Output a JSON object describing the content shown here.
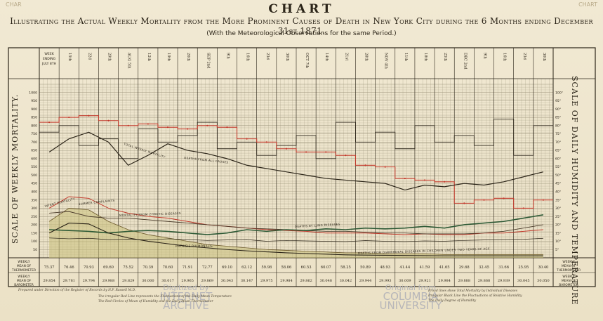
{
  "header": {
    "title": "CHART",
    "subtitle": "Illustrating the Actual Weekly Mortality from the More Prominent Causes of Death in New York City during the 6 Months ending December 31st 1871.",
    "note": "(With the Meteorological Observations for the same Period.)",
    "corner_left": "CHAR",
    "corner_right": "CHART"
  },
  "left_axis_title": "SCALE OF WEEKLY MORTALITY.",
  "right_axis_title": "SCALE OF DAILY HUMIDITY AND TEMPERATURE",
  "header_cell": [
    "WEEK",
    "ENDING",
    "JULY 8TH"
  ],
  "week_labels": [
    "15th",
    "22d",
    "29th",
    "AUG 5th",
    "12th",
    "19th",
    "26th",
    "SEP 2nd",
    "9th",
    "16th",
    "23d",
    "30th",
    "OCT 7th",
    "14th",
    "21st",
    "28th",
    "NOV 4th",
    "11th",
    "18th",
    "25th",
    "DEC 2nd",
    "9th",
    "16th",
    "23d",
    "30th"
  ],
  "row_labels": {
    "thermometer": [
      "WEEKLY",
      "MEAN OF",
      "THERMOMETER"
    ],
    "barometer": [
      "WEEKLY",
      "MEAN OF",
      "BAROMETER"
    ]
  },
  "thermometer_means": [
    "75.37",
    "76.46",
    "70.93",
    "69.60",
    "75.52",
    "70.39",
    "70.60",
    "71.91",
    "72.77",
    "69.10",
    "62.12",
    "59.98",
    "58.06",
    "60.53",
    "60.07",
    "58.25",
    "50.89",
    "48.93",
    "41.44",
    "41.59",
    "41.65",
    "29.68",
    "32.45",
    "31.66",
    "25.95",
    "30.40"
  ],
  "barometer_means": [
    "29.854",
    "29.781",
    "29.794",
    "29.988",
    "29.829",
    "30.000",
    "30.017",
    "29.965",
    "29.869",
    "30.043",
    "30.147",
    "29.975",
    "29.984",
    "29.862",
    "30.048",
    "30.042",
    "29.944",
    "29.993",
    "30.009",
    "29.921",
    "29.984",
    "29.888",
    "29.868",
    "29.939",
    "30.045",
    "30.050"
  ],
  "annotations": {
    "total": "TOTAL WEEKLY MORTALITY",
    "all_causes": "DEATHS FROM ALL CAUSES",
    "infant": "INFANT MORTALITY",
    "summer": "SUMMER COMPLAINTS",
    "zymotic": "MORTALITY FROM ZYMOTIC DISEASES",
    "lung": "DEATHS BY LUNG DISEASES",
    "phthisis": "PHTHISIS PULMONALIS",
    "diarrhoeal": "DEATHS FROM DIARRHOEAL DISEASES IN CHILDREN UNDER TWO YEARS OF AGE"
  },
  "watermarks": {
    "left": [
      "Digitized by",
      "INTERNET ARCHIVE"
    ],
    "right": [
      "Original from",
      "COLUMBIA UNIVERSITY"
    ]
  },
  "footnotes": {
    "left": [
      "Prepared under Direction of the Register of Records by N.F. Russell M.D.",
      "The irregular Red Line represents the Fluctuations of the Daily Mean Temperature",
      "The Red Circles of Mean of Humidity and the Daily Mean Thermometer"
    ],
    "right": [
      "Broad lines show Total Mortality by Individual Diseases",
      "Irregular Black Line the Fluctuations of Relative Humidity",
      "The Daily Degree of Humidity"
    ]
  },
  "colors": {
    "paper": "#efe6cf",
    "grid": "#9a9279",
    "ink": "#2b2418",
    "red_line": "#c0392b",
    "green_line": "#2e5a36",
    "olive_fill": "#c8c07a"
  },
  "chart_data": {
    "type": "line",
    "x_categories": [
      "Jul 8",
      "Jul 15",
      "Jul 22",
      "Jul 29",
      "Aug 5",
      "Aug 12",
      "Aug 19",
      "Aug 26",
      "Sep 2",
      "Sep 9",
      "Sep 16",
      "Sep 23",
      "Sep 30",
      "Oct 7",
      "Oct 14",
      "Oct 21",
      "Oct 28",
      "Nov 4",
      "Nov 11",
      "Nov 18",
      "Nov 25",
      "Dec 2",
      "Dec 9",
      "Dec 16",
      "Dec 23",
      "Dec 30"
    ],
    "y_left_ticks": [
      "1000",
      "950",
      "900",
      "850",
      "800",
      "750",
      "700",
      "650",
      "600",
      "550",
      "500",
      "450",
      "400",
      "350",
      "300",
      "250",
      "200",
      "150",
      "100",
      "50"
    ],
    "y_left_range": [
      0,
      1050
    ],
    "y_right_ticks": [
      "100°",
      "95°",
      "90°",
      "85°",
      "80°",
      "75°",
      "70°",
      "65°",
      "60°",
      "55°",
      "50°",
      "45°",
      "40°",
      "35°",
      "30°",
      "25°",
      "20°",
      "15°",
      "10°",
      "5°"
    ],
    "y_right_range": [
      0,
      105
    ],
    "series": [
      {
        "name": "TOTAL WEEKLY MORTALITY",
        "axis": "left",
        "color": "#2b2418",
        "values": [
          640,
          720,
          760,
          700,
          560,
          620,
          690,
          650,
          630,
          600,
          560,
          540,
          520,
          500,
          480,
          470,
          460,
          450,
          410,
          440,
          430,
          450,
          440,
          460,
          490,
          520
        ]
      },
      {
        "name": "INFANT MORTALITY",
        "axis": "left",
        "color": "#c0392b",
        "values": [
          300,
          370,
          360,
          300,
          270,
          250,
          240,
          220,
          200,
          190,
          180,
          170,
          165,
          160,
          150,
          150,
          150,
          145,
          140,
          145,
          140,
          140,
          150,
          150,
          160,
          170
        ]
      },
      {
        "name": "SUMMER COMPLAINTS",
        "axis": "left",
        "color": "#6d5a2c",
        "values": [
          220,
          300,
          290,
          220,
          170,
          140,
          120,
          100,
          80,
          70,
          60,
          50,
          45,
          40,
          35,
          30,
          30,
          25,
          25,
          25,
          20,
          20,
          20,
          20,
          20,
          20
        ]
      },
      {
        "name": "MORTALITY FROM ZYMOTIC DISEASES",
        "axis": "left",
        "color": "#4a3a2a",
        "values": [
          270,
          280,
          250,
          240,
          240,
          230,
          220,
          210,
          200,
          190,
          180,
          175,
          170,
          165,
          160,
          160,
          155,
          150,
          150,
          145,
          145,
          145,
          150,
          160,
          180,
          200
        ]
      },
      {
        "name": "DEATHS BY LUNG DISEASES",
        "axis": "left",
        "color": "#2e5a36",
        "values": [
          170,
          165,
          160,
          150,
          160,
          165,
          160,
          150,
          140,
          150,
          170,
          160,
          170,
          165,
          175,
          170,
          180,
          175,
          180,
          190,
          180,
          200,
          210,
          220,
          240,
          260
        ]
      },
      {
        "name": "PHTHISIS PULMONALIS",
        "axis": "left",
        "color": "#2b2418",
        "values": [
          120,
          115,
          118,
          110,
          112,
          108,
          115,
          110,
          105,
          108,
          110,
          100,
          105,
          102,
          100,
          98,
          104,
          100,
          98,
          102,
          100,
          105,
          108,
          110,
          112,
          118
        ]
      },
      {
        "name": "DEATHS FROM DIARRHOEAL DISEASES IN CHILDREN UNDER TWO YEARS OF AGE",
        "axis": "left",
        "color": "#2b2418",
        "values": [
          150,
          210,
          205,
          150,
          120,
          100,
          85,
          70,
          60,
          50,
          42,
          36,
          30,
          26,
          22,
          18,
          16,
          15,
          14,
          13,
          12,
          12,
          12,
          12,
          12,
          12
        ]
      },
      {
        "name": "Daily mean temperature",
        "axis": "right",
        "color": "#c0392b",
        "values": [
          82,
          85,
          86,
          83,
          80,
          81,
          79,
          78,
          80,
          79,
          72,
          70,
          66,
          64,
          64,
          62,
          56,
          55,
          48,
          47,
          46,
          33,
          35,
          36,
          30,
          35
        ]
      },
      {
        "name": "Relative humidity",
        "axis": "right",
        "color": "#2b2418",
        "values": [
          76,
          80,
          68,
          72,
          60,
          78,
          70,
          74,
          82,
          66,
          70,
          62,
          68,
          74,
          60,
          82,
          70,
          76,
          66,
          80,
          70,
          74,
          68,
          84,
          62,
          80
        ]
      }
    ]
  }
}
